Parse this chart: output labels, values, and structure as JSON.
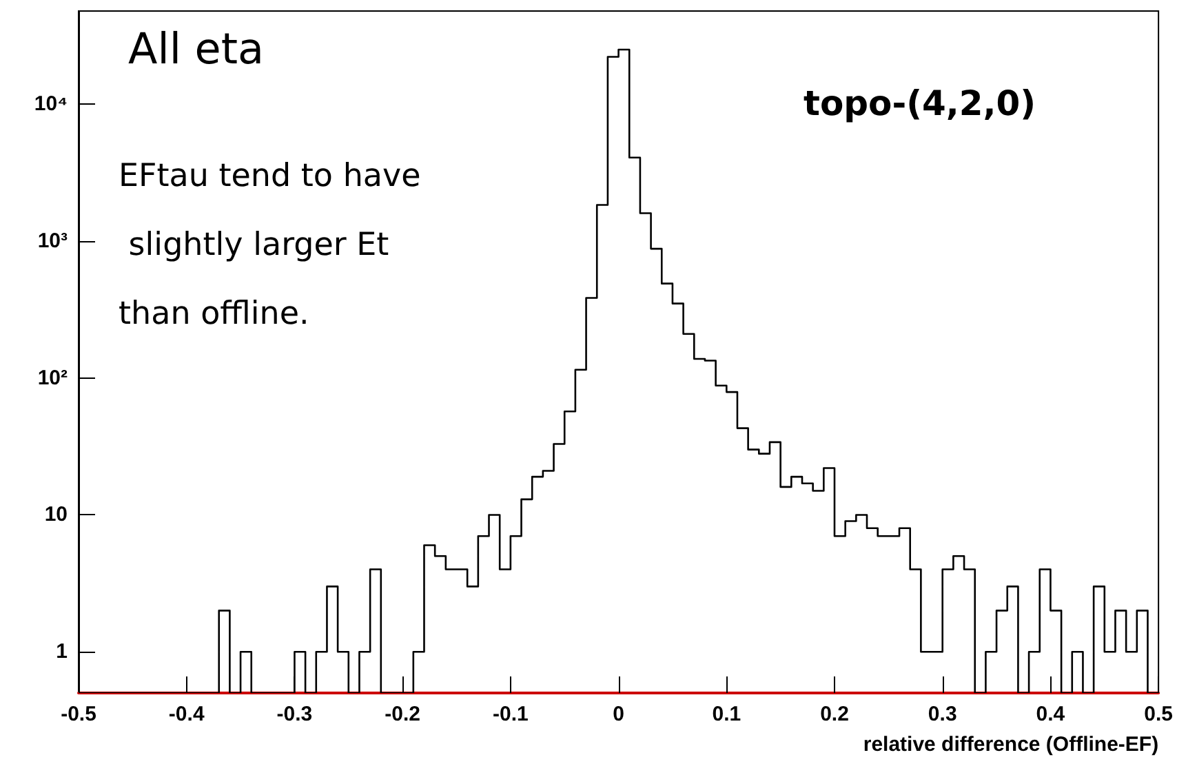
{
  "chart_data": {
    "type": "histogram",
    "xlabel": "relative difference (Offline-EF)",
    "annotations": [
      "All eta",
      "EFtau tend to have\n slightly larger Et\nthan offline.",
      "topo-(4,2,0)"
    ],
    "bins": [
      -0.5,
      -0.49,
      -0.48,
      -0.47,
      -0.46,
      -0.45,
      -0.44,
      -0.43,
      -0.42,
      -0.41,
      -0.4,
      -0.39,
      -0.38,
      -0.37,
      -0.36,
      -0.35,
      -0.34,
      -0.33,
      -0.32,
      -0.31,
      -0.3,
      -0.29,
      -0.28,
      -0.27,
      -0.26,
      -0.25,
      -0.24,
      -0.23,
      -0.22,
      -0.21,
      -0.2,
      -0.19,
      -0.18,
      -0.17,
      -0.16,
      -0.15,
      -0.14,
      -0.13,
      -0.12,
      -0.11,
      -0.1,
      -0.09,
      -0.08,
      -0.07,
      -0.06,
      -0.05,
      -0.04,
      -0.03,
      -0.02,
      -0.01,
      0,
      0.01,
      0.02,
      0.03,
      0.04,
      0.05,
      0.06,
      0.07,
      0.08,
      0.09,
      0.1,
      0.11,
      0.12,
      0.13,
      0.14,
      0.15,
      0.16,
      0.17,
      0.18,
      0.19,
      0.2,
      0.21,
      0.22,
      0.23,
      0.24,
      0.25,
      0.26,
      0.27,
      0.28,
      0.29,
      0.3,
      0.31,
      0.32,
      0.33,
      0.34,
      0.35,
      0.36,
      0.37,
      0.38,
      0.39,
      0.4,
      0.41,
      0.42,
      0.43,
      0.44,
      0.45,
      0.46,
      0.47,
      0.48,
      0.49,
      0.5
    ],
    "values": [
      null,
      null,
      null,
      null,
      null,
      null,
      null,
      null,
      null,
      null,
      null,
      null,
      null,
      2,
      null,
      1,
      null,
      null,
      null,
      null,
      1,
      null,
      1,
      3,
      1,
      null,
      1,
      4,
      null,
      null,
      null,
      1,
      6,
      5,
      4,
      4,
      3,
      7,
      10,
      4,
      7,
      13,
      19,
      21,
      33,
      57,
      115,
      385,
      1840,
      22200,
      25100,
      4080,
      1600,
      880,
      490,
      350,
      210,
      138,
      134,
      88,
      79,
      43,
      30,
      28,
      34,
      16,
      19,
      17,
      15,
      22,
      7,
      9,
      10,
      8,
      7,
      7,
      8,
      4,
      1,
      1,
      4,
      5,
      4,
      null,
      1,
      2,
      3,
      null,
      1,
      4,
      2,
      null,
      1,
      null,
      3,
      1,
      2,
      1,
      2,
      null
    ],
    "color": "#000000",
    "log": "y",
    "xlim": [
      -0.5,
      0.5
    ],
    "xticks": [
      -0.5,
      -0.4,
      -0.3,
      -0.2,
      -0.1,
      0,
      0.1,
      0.2,
      0.3,
      0.4,
      0.5
    ],
    "ylim": [
      0.5,
      48000
    ],
    "yticks": [
      1,
      10,
      {
        "value": 100,
        "label": "10²"
      },
      {
        "value": 1000,
        "label": "10³"
      },
      {
        "value": 10000,
        "label": "10⁴"
      }
    ],
    "grid": false
  }
}
